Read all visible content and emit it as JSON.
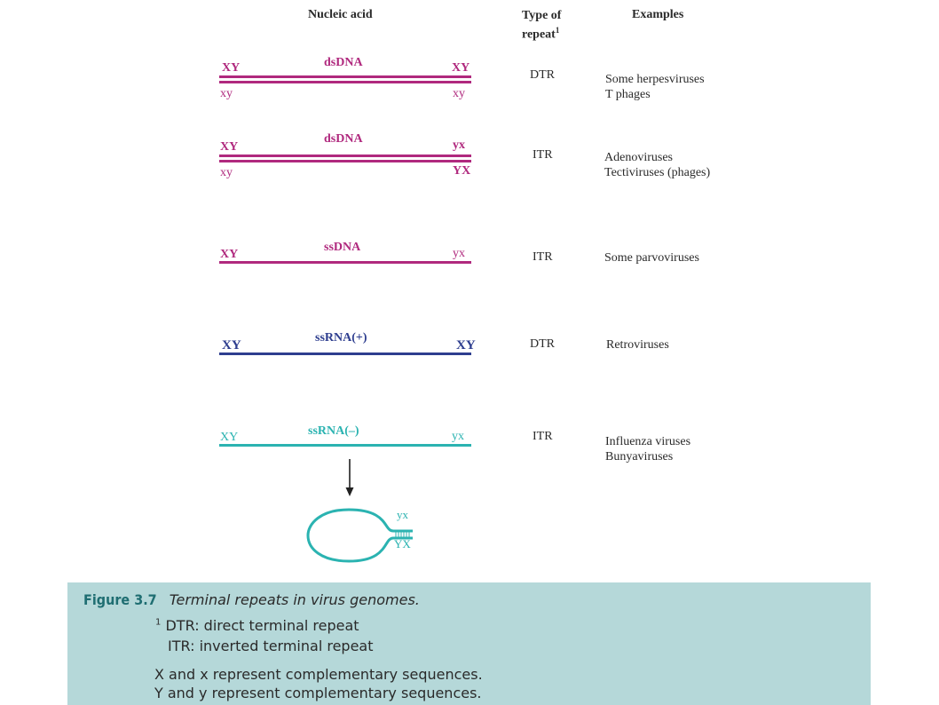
{
  "headers": {
    "nucleic_acid": "Nucleic acid",
    "type_line1": "Type of",
    "type_line2": "repeat",
    "type_sup": "1",
    "examples": "Examples"
  },
  "colors": {
    "dna": "#b0297e",
    "ssrna_plus": "#2e3e8f",
    "ssrna_minus": "#2bb3b1",
    "caption_bg": "#b5d8d9",
    "figure_num": "#1f6e72"
  },
  "rows": [
    {
      "name": "dsDNA",
      "type": "DTR",
      "top_left": "XY",
      "top_right": "XY",
      "bottom_left": "xy",
      "bottom_right": "xy",
      "examples": [
        "Some herpesviruses",
        "T phages"
      ]
    },
    {
      "name": "dsDNA",
      "type": "ITR",
      "top_left": "XY",
      "top_right": "yx",
      "bottom_left": "xy",
      "bottom_right": "YX",
      "examples": [
        "Adenoviruses",
        "Tectiviruses (phages)"
      ]
    },
    {
      "name": "ssDNA",
      "type": "ITR",
      "top_left": "XY",
      "top_right": "yx",
      "examples": [
        "Some parvoviruses"
      ]
    },
    {
      "name": "ssRNA(+)",
      "type": "DTR",
      "top_left": "XY",
      "top_right": "XY",
      "examples": [
        "Retroviruses"
      ]
    },
    {
      "name": "ssRNA(–)",
      "type": "ITR",
      "top_left": "XY",
      "top_right": "yx",
      "examples": [
        "Influenza viruses",
        "Bunyaviruses"
      ]
    }
  ],
  "panhandle": {
    "label_top": "yx",
    "label_bottom": "YX"
  },
  "caption": {
    "figure_number": "Figure 3.7",
    "title": "Terminal repeats in virus genomes.",
    "footnote_mark": "1",
    "note1": "DTR: direct terminal repeat",
    "note2": "ITR: inverted terminal repeat",
    "note3": "X and x represent complementary sequences.",
    "note4": "Y and y represent complementary sequences."
  }
}
